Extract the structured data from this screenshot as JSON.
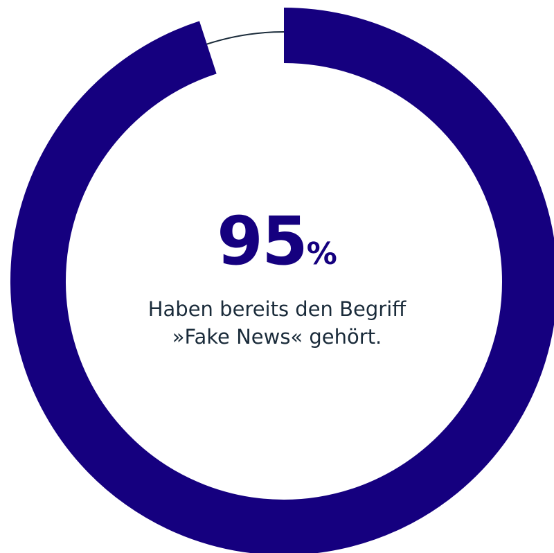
{
  "chart_data": {
    "type": "pie",
    "variant": "donut",
    "value_percent": 95,
    "remainder_percent": 5,
    "value_color": "#15007f",
    "remainder_color": "#1a2b3a",
    "center_value": "95",
    "center_unit": "%",
    "caption_lines": [
      "Haben bereits den Begriff",
      "»Fake News« gehört."
    ]
  }
}
